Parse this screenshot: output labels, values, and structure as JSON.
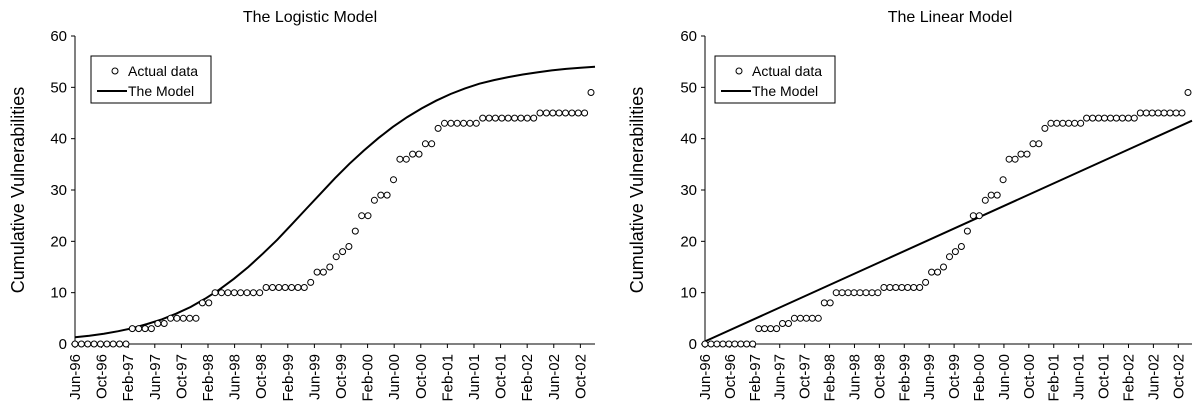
{
  "chart_data": [
    {
      "type": "scatter",
      "title": "The Logistic Model",
      "xlabel": "",
      "ylabel": "Cumulative Vulnerabilities",
      "ylim": [
        0,
        60
      ],
      "yticks": [
        0,
        10,
        20,
        30,
        40,
        50,
        60
      ],
      "xticks": [
        "Jun-96",
        "Oct-96",
        "Feb-97",
        "Jun-97",
        "Oct-97",
        "Feb-98",
        "Jun-98",
        "Oct-98",
        "Feb-99",
        "Jun-99",
        "Oct-99",
        "Feb-00",
        "Jun-00",
        "Oct-00",
        "Feb-01",
        "Jun-01",
        "Oct-01",
        "Feb-02",
        "Jun-02",
        "Oct-02"
      ],
      "grid": false,
      "legend_position": "top-left",
      "series": [
        {
          "name": "Actual data",
          "style": "markers",
          "values": [
            0,
            0,
            0,
            0,
            0,
            0,
            0,
            0,
            0,
            3,
            3,
            3,
            3,
            4,
            4,
            5,
            5,
            5,
            5,
            5,
            8,
            8,
            10,
            10,
            10,
            10,
            10,
            10,
            10,
            10,
            11,
            11,
            11,
            11,
            11,
            11,
            11,
            12,
            14,
            14,
            15,
            17,
            18,
            19,
            22,
            25,
            25,
            28,
            29,
            29,
            32,
            36,
            36,
            37,
            37,
            39,
            39,
            42,
            43,
            43,
            43,
            43,
            43,
            43,
            44,
            44,
            44,
            44,
            44,
            44,
            44,
            44,
            44,
            45,
            45,
            45,
            45,
            45,
            45,
            45,
            45,
            49
          ]
        },
        {
          "name": "The Model",
          "style": "line",
          "values": [
            1.3,
            1.6,
            2.0,
            2.5,
            3.1,
            3.9,
            4.8,
            5.9,
            7.2,
            8.8,
            10.6,
            12.7,
            15.0,
            17.6,
            20.3,
            23.3,
            26.3,
            29.3,
            32.3,
            35.1,
            37.7,
            40.1,
            42.3,
            44.2,
            45.9,
            47.4,
            48.7,
            49.8,
            50.7,
            51.4,
            52.0,
            52.5,
            52.9,
            53.3,
            53.6,
            53.8,
            54.0
          ]
        }
      ]
    },
    {
      "type": "scatter",
      "title": "The Linear Model",
      "xlabel": "",
      "ylabel": "Cumulative Vulnerabilities",
      "ylim": [
        0,
        60
      ],
      "yticks": [
        0,
        10,
        20,
        30,
        40,
        50,
        60
      ],
      "xticks": [
        "Jun-96",
        "Oct-96",
        "Feb-97",
        "Jun-97",
        "Oct-97",
        "Feb-98",
        "Jun-98",
        "Oct-98",
        "Feb-99",
        "Jun-99",
        "Oct-99",
        "Feb-00",
        "Jun-00",
        "Oct-00",
        "Feb-01",
        "Jun-01",
        "Oct-01",
        "Feb-02",
        "Jun-02",
        "Oct-02"
      ],
      "grid": false,
      "legend_position": "top-left",
      "series": [
        {
          "name": "Actual data",
          "style": "markers",
          "values": [
            0,
            0,
            0,
            0,
            0,
            0,
            0,
            0,
            0,
            3,
            3,
            3,
            3,
            4,
            4,
            5,
            5,
            5,
            5,
            5,
            8,
            8,
            10,
            10,
            10,
            10,
            10,
            10,
            10,
            10,
            11,
            11,
            11,
            11,
            11,
            11,
            11,
            12,
            14,
            14,
            15,
            17,
            18,
            19,
            22,
            25,
            25,
            28,
            29,
            29,
            32,
            36,
            36,
            37,
            37,
            39,
            39,
            42,
            43,
            43,
            43,
            43,
            43,
            43,
            44,
            44,
            44,
            44,
            44,
            44,
            44,
            44,
            44,
            45,
            45,
            45,
            45,
            45,
            45,
            45,
            45,
            49
          ]
        },
        {
          "name": "The Model",
          "style": "line",
          "values": [
            0.5,
            43.5
          ]
        }
      ]
    }
  ]
}
